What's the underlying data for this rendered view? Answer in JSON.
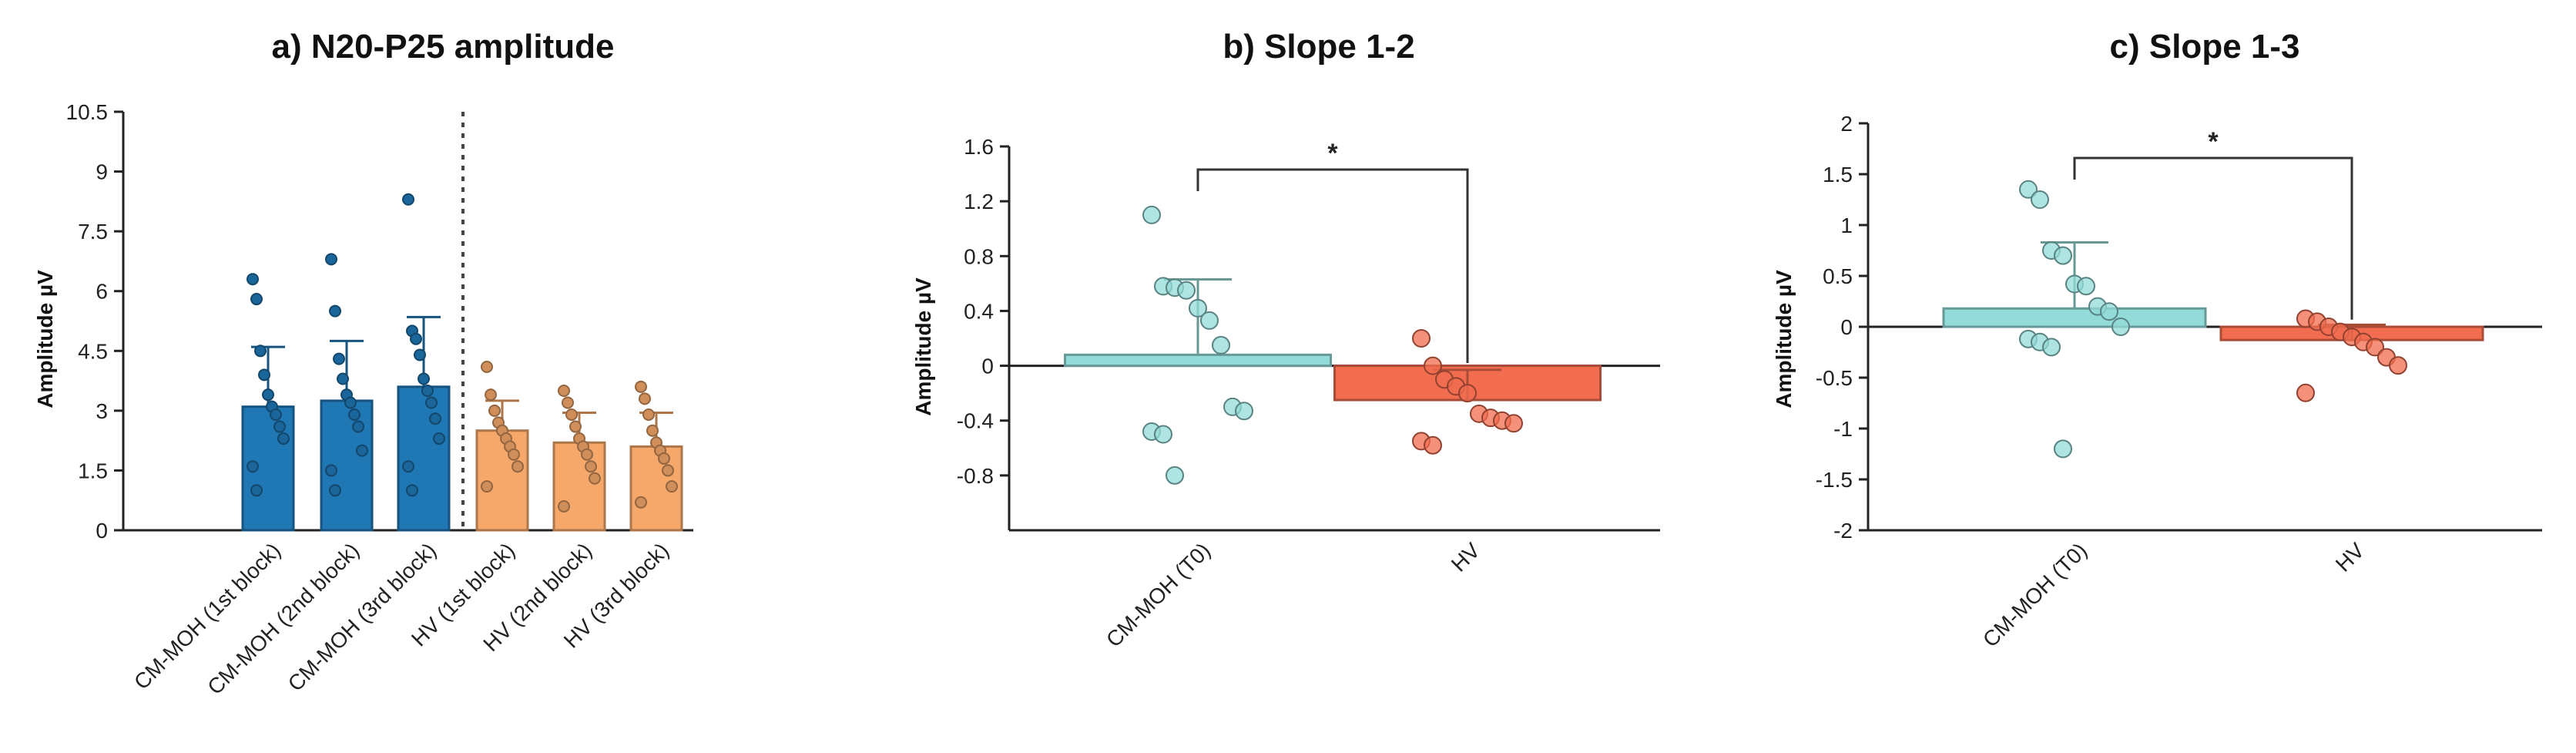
{
  "chart_data": [
    {
      "type": "bar",
      "title": "a) N20-P25 amplitude",
      "ylabel": "Amplitude µV",
      "xlabel": "",
      "ylim": [
        0,
        10.5
      ],
      "yticks": [
        "0",
        "1.5",
        "3",
        "4.5",
        "6",
        "7.5",
        "9",
        "10.5"
      ],
      "categories": [
        "CM-MOH (1st block)",
        "CM-MOH (2nd block)",
        "CM-MOH (3rd block)",
        "HV (1st block)",
        "HV (2nd block)",
        "HV (3rd block)"
      ],
      "values": [
        3.1,
        3.25,
        3.6,
        2.5,
        2.2,
        2.1
      ],
      "sd": [
        1.5,
        1.5,
        1.75,
        0.75,
        0.75,
        0.85
      ],
      "bar_colors": [
        "#1f77b4",
        "#1f77b4",
        "#1f77b4",
        "#f5a86a",
        "#f5a86a",
        "#f5a86a"
      ],
      "divider_after": 2,
      "points": [
        [
          6.3,
          5.8,
          4.5,
          3.9,
          3.4,
          3.1,
          2.9,
          2.6,
          2.3,
          1.6,
          1.0
        ],
        [
          6.8,
          5.5,
          4.3,
          3.8,
          3.4,
          3.2,
          2.9,
          2.6,
          2.0,
          1.5,
          1.0
        ],
        [
          8.3,
          5.0,
          4.8,
          4.4,
          3.8,
          3.5,
          3.2,
          2.8,
          2.3,
          1.6,
          1.0
        ],
        [
          4.1,
          3.4,
          3.0,
          2.7,
          2.5,
          2.3,
          2.1,
          1.9,
          1.6,
          1.1
        ],
        [
          3.5,
          3.2,
          2.9,
          2.6,
          2.3,
          2.1,
          1.9,
          1.6,
          1.3,
          0.6
        ],
        [
          3.6,
          3.3,
          2.9,
          2.5,
          2.2,
          2.0,
          1.8,
          1.5,
          1.1,
          0.7
        ]
      ]
    },
    {
      "type": "bar",
      "title": "b) Slope 1-2",
      "ylabel": "Amplitude µV",
      "xlabel": "",
      "ylim": [
        -1.2,
        1.6
      ],
      "yticks": [
        "-0.8",
        "-0.4",
        "0",
        "0.4",
        "0.8",
        "1.2",
        "1.6"
      ],
      "categories": [
        "CM-MOH (T0)",
        "HV"
      ],
      "values": [
        0.08,
        -0.25
      ],
      "sd": [
        0.55,
        0.22
      ],
      "bar_colors": [
        "#93dbd8",
        "#f26c4f"
      ],
      "points": [
        [
          1.1,
          0.58,
          0.57,
          0.55,
          0.42,
          0.33,
          0.15,
          -0.3,
          -0.33,
          -0.48,
          -0.5,
          -0.8
        ],
        [
          0.2,
          0.0,
          -0.1,
          -0.15,
          -0.2,
          -0.35,
          -0.38,
          -0.4,
          -0.42,
          -0.55,
          -0.58
        ]
      ],
      "significance": {
        "label": "*",
        "pair": [
          0,
          1
        ]
      }
    },
    {
      "type": "bar",
      "title": "c) Slope 1-3",
      "ylabel": "Amplitude µV",
      "xlabel": "",
      "ylim": [
        -2,
        2
      ],
      "yticks": [
        "-2",
        "-1.5",
        "-1",
        "-0.5",
        "0",
        "0.5",
        "1",
        "1.5",
        "2"
      ],
      "categories": [
        "CM-MOH (T0)",
        "HV"
      ],
      "values": [
        0.18,
        -0.13
      ],
      "sd": [
        0.65,
        0.15
      ],
      "bar_colors": [
        "#93dbd8",
        "#f26c4f"
      ],
      "points": [
        [
          1.35,
          1.25,
          0.75,
          0.7,
          0.42,
          0.4,
          0.2,
          0.15,
          0.0,
          -0.12,
          -0.15,
          -0.2,
          -1.2
        ],
        [
          0.08,
          0.05,
          0.0,
          -0.05,
          -0.1,
          -0.15,
          -0.2,
          -0.3,
          -0.38,
          -0.65
        ]
      ],
      "significance": {
        "label": "*",
        "pair": [
          0,
          1
        ]
      }
    }
  ]
}
